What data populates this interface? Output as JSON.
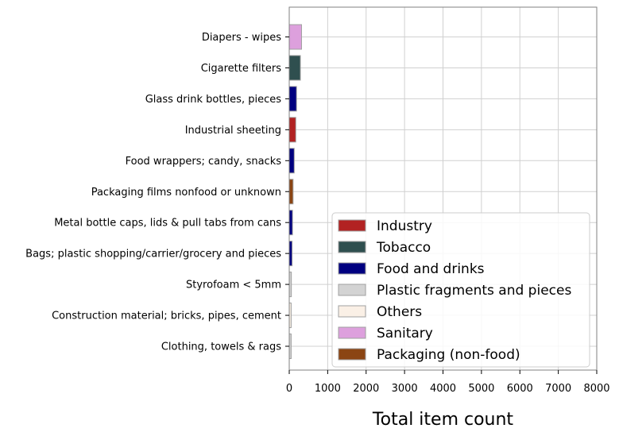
{
  "chart_data": {
    "type": "bar",
    "orientation": "horizontal",
    "title": "",
    "xlabel": "Total item count",
    "ylabel": "",
    "xlim": [
      0,
      8000
    ],
    "xticks": [
      0,
      1000,
      2000,
      3000,
      4000,
      5000,
      6000,
      7000,
      8000
    ],
    "grid": true,
    "legend_position": "lower-right",
    "categories": [
      "Diapers - wipes",
      "Cigarette filters",
      "Glass drink bottles, pieces",
      "Industrial sheeting",
      "Food wrappers; candy, snacks",
      "Packaging films nonfood or unknown",
      "Metal bottle caps, lids & pull tabs from cans",
      "Bags; plastic shopping/carrier/grocery and pieces",
      "Styrofoam < 5mm",
      "Construction material; bricks, pipes, cement",
      "Clothing, towels & rags"
    ],
    "values": [
      320,
      290,
      190,
      170,
      130,
      100,
      85,
      75,
      55,
      50,
      50
    ],
    "bar_groups": [
      "Sanitary",
      "Tobacco",
      "Food and drinks",
      "Industry",
      "Food and drinks",
      "Packaging (non-food)",
      "Food and drinks",
      "Food and drinks",
      "Plastic fragments and pieces",
      "Others",
      "Plastic fragments and pieces"
    ],
    "legend": [
      {
        "name": "Industry",
        "color": "#b22222"
      },
      {
        "name": "Tobacco",
        "color": "#2f4f4f"
      },
      {
        "name": "Food and drinks",
        "color": "#000080"
      },
      {
        "name": "Plastic fragments and pieces",
        "color": "#d3d3d3"
      },
      {
        "name": "Others",
        "color": "#faf0e6"
      },
      {
        "name": "Sanitary",
        "color": "#dda0dd"
      },
      {
        "name": "Packaging (non-food)",
        "color": "#8b4513"
      }
    ]
  }
}
